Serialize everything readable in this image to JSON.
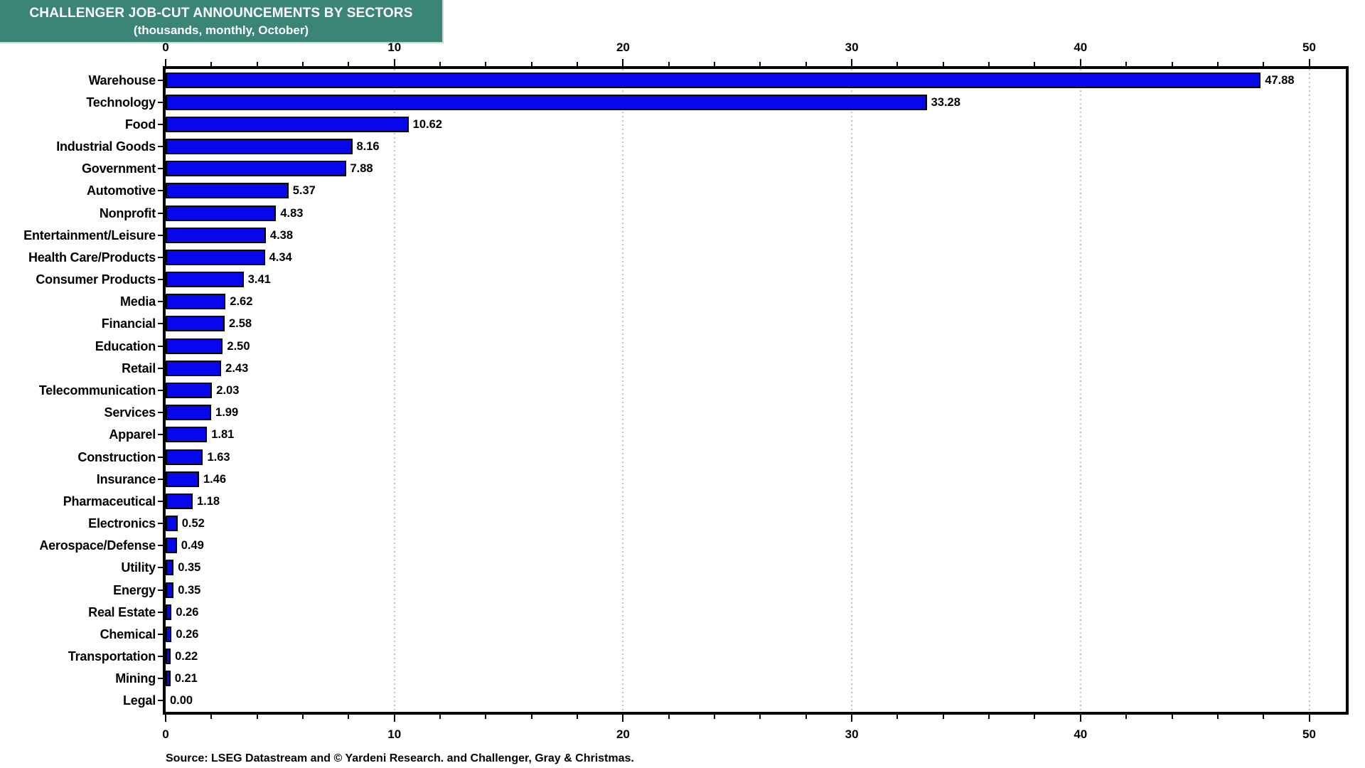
{
  "title": {
    "line1": "CHALLENGER JOB-CUT ANNOUNCEMENTS BY SECTORS",
    "line2": "(thousands, monthly, October)"
  },
  "source": "Source: LSEG Datastream and © Yardeni Research. and Challenger, Gray & Christmas.",
  "colors": {
    "bar": "#0707ee",
    "bar_border": "#000000",
    "title_bg": "#3b8577",
    "title_text": "#ffffff",
    "gridline": "#c4c4c4",
    "axis": "#000000"
  },
  "chart_data": {
    "type": "bar",
    "orientation": "horizontal",
    "title": "CHALLENGER JOB-CUT ANNOUNCEMENTS BY SECTORS",
    "subtitle": "(thousands, monthly, October)",
    "categories": [
      "Warehouse",
      "Technology",
      "Food",
      "Industrial Goods",
      "Government",
      "Automotive",
      "Nonprofit",
      "Entertainment/Leisure",
      "Health Care/Products",
      "Consumer Products",
      "Media",
      "Financial",
      "Education",
      "Retail",
      "Telecommunication",
      "Services",
      "Apparel",
      "Construction",
      "Insurance",
      "Pharmaceutical",
      "Electronics",
      "Aerospace/Defense",
      "Utility",
      "Energy",
      "Real Estate",
      "Chemical",
      "Transportation",
      "Mining",
      "Legal"
    ],
    "values": [
      47.88,
      33.28,
      10.62,
      8.16,
      7.88,
      5.37,
      4.83,
      4.38,
      4.34,
      3.41,
      2.62,
      2.58,
      2.5,
      2.43,
      2.03,
      1.99,
      1.81,
      1.63,
      1.46,
      1.18,
      0.52,
      0.49,
      0.35,
      0.35,
      0.26,
      0.26,
      0.22,
      0.21,
      0.0
    ],
    "value_labels": [
      "47.88",
      "33.28",
      "10.62",
      "8.16",
      "7.88",
      "5.37",
      "4.83",
      "4.38",
      "4.34",
      "3.41",
      "2.62",
      "2.58",
      "2.50",
      "2.43",
      "2.03",
      "1.99",
      "1.81",
      "1.63",
      "1.46",
      "1.18",
      "0.52",
      "0.49",
      "0.35",
      "0.35",
      "0.26",
      "0.26",
      "0.22",
      "0.21",
      "0.00"
    ],
    "xlabel": "",
    "ylabel": "",
    "xlim": [
      0,
      51.6
    ],
    "xticks_major": [
      0,
      10,
      20,
      30,
      40,
      50
    ],
    "xtick_minor_step": 2,
    "grid": "vertical dotted gridlines at major ticks",
    "axes_shown": [
      "top",
      "bottom"
    ],
    "legend": "none"
  }
}
